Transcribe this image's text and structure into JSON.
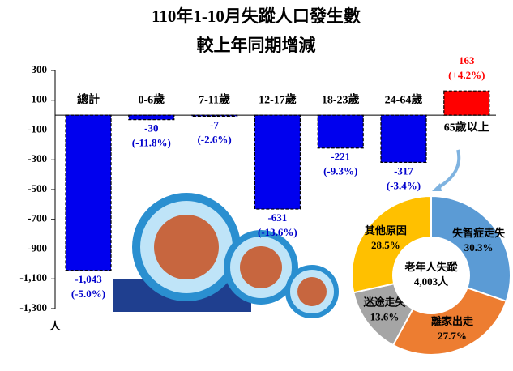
{
  "chart_data": [
    {
      "type": "bar",
      "title": "110年1-10月失蹤人口發生數",
      "subtitle": "較上年同期增減",
      "y_unit": "人",
      "categories": [
        "總計",
        "0-6歲",
        "7-11歲",
        "12-17歲",
        "18-23歲",
        "24-64歲",
        "65歲以上"
      ],
      "values": [
        -1043,
        -30,
        -7,
        -631,
        -221,
        -317,
        163
      ],
      "value_labels": [
        "-1,043",
        "-30",
        "-7",
        "-631",
        "-221",
        "-317",
        "163"
      ],
      "pct_labels": [
        "(-5.0%)",
        "(-11.8%)",
        "(-2.6%)",
        "(-13.6%)",
        "(-9.3%)",
        "(-3.4%)",
        "(+4.2%)"
      ],
      "colors": [
        "#0000ee",
        "#0000ee",
        "#0000ee",
        "#0000ee",
        "#0000ee",
        "#0000ee",
        "#ff0000"
      ],
      "ylim": [
        300,
        -1300
      ],
      "yticks": [
        300,
        100,
        -100,
        -300,
        -500,
        -700,
        -900,
        {
          "value": -1100,
          "label": "-1,100"
        },
        {
          "value": -1300,
          "label": "-1,300"
        }
      ]
    },
    {
      "type": "pie",
      "center_title": "老年人失蹤",
      "center_value": "4,003人",
      "categories": [
        "失智症走失",
        "離家出走",
        "迷途走失",
        "其他原因"
      ],
      "values": [
        30.3,
        27.7,
        13.6,
        28.5
      ],
      "value_labels": [
        "30.3%",
        "27.7%",
        "13.6%",
        "28.5%"
      ],
      "colors": [
        "#5b9bd5",
        "#ed7d31",
        "#a5a5a5",
        "#ffc000"
      ]
    }
  ]
}
